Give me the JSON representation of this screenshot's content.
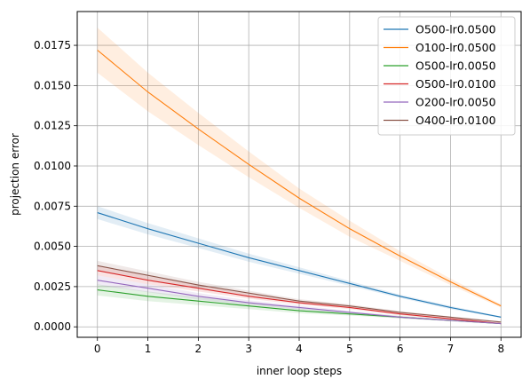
{
  "chart_data": {
    "type": "line",
    "title": "",
    "xlabel": "inner loop steps",
    "ylabel": "projection error",
    "xlim": [
      -0.4,
      8.4
    ],
    "ylim": [
      -0.00065,
      0.0196
    ],
    "xticks": [
      0,
      1,
      2,
      3,
      4,
      5,
      6,
      7,
      8
    ],
    "xtick_labels": [
      "0",
      "1",
      "2",
      "3",
      "4",
      "5",
      "6",
      "7",
      "8"
    ],
    "yticks": [
      0,
      0.0025,
      0.005,
      0.0075,
      0.01,
      0.0125,
      0.015,
      0.0175
    ],
    "ytick_labels": [
      "0.0000",
      "0.0025",
      "0.0050",
      "0.0075",
      "0.0100",
      "0.0125",
      "0.0150",
      "0.0175"
    ],
    "grid": true,
    "legend_position": "top-right",
    "x": [
      0,
      1,
      2,
      3,
      4,
      5,
      6,
      7,
      8
    ],
    "series": [
      {
        "name": "O500-lr0.0500",
        "color": "#1f77b4",
        "values": [
          0.0071,
          0.0061,
          0.0052,
          0.0043,
          0.0035,
          0.0027,
          0.0019,
          0.0012,
          0.0006
        ],
        "band": [
          0.0004,
          0.00035,
          0.0003,
          0.00025,
          0.0002,
          0.00015,
          0.0001,
          0.0001,
          5e-05
        ]
      },
      {
        "name": "O100-lr0.0500",
        "color": "#ff7f0e",
        "values": [
          0.0172,
          0.0146,
          0.0123,
          0.0101,
          0.008,
          0.0061,
          0.0044,
          0.0028,
          0.0013
        ],
        "band": [
          0.0014,
          0.0012,
          0.001,
          0.0008,
          0.0006,
          0.0005,
          0.0003,
          0.0002,
          0.0001
        ]
      },
      {
        "name": "O500-lr0.0050",
        "color": "#2ca02c",
        "values": [
          0.0023,
          0.0019,
          0.0016,
          0.0013,
          0.001,
          0.0008,
          0.0006,
          0.0004,
          0.0002
        ],
        "band": [
          0.00035,
          0.0003,
          0.00025,
          0.0002,
          0.00015,
          0.0001,
          8e-05,
          5e-05,
          3e-05
        ]
      },
      {
        "name": "O500-lr0.0100",
        "color": "#d62728",
        "values": [
          0.0035,
          0.0029,
          0.0024,
          0.0019,
          0.0015,
          0.0012,
          0.0008,
          0.0005,
          0.0002
        ],
        "band": [
          0.0003,
          0.00025,
          0.0002,
          0.00015,
          0.00012,
          0.0001,
          8e-05,
          5e-05,
          3e-05
        ]
      },
      {
        "name": "O200-lr0.0050",
        "color": "#9467bd",
        "values": [
          0.0029,
          0.0024,
          0.0019,
          0.0015,
          0.0012,
          0.0009,
          0.0006,
          0.0004,
          0.0002
        ],
        "band": [
          0.0003,
          0.00025,
          0.0002,
          0.00015,
          0.00012,
          0.0001,
          8e-05,
          5e-05,
          3e-05
        ]
      },
      {
        "name": "O400-lr0.0100",
        "color": "#8c564b",
        "values": [
          0.0038,
          0.0032,
          0.0026,
          0.0021,
          0.0016,
          0.0013,
          0.0009,
          0.0006,
          0.0003
        ],
        "band": [
          0.0003,
          0.00025,
          0.0002,
          0.00015,
          0.00012,
          0.0001,
          8e-05,
          5e-05,
          3e-05
        ]
      }
    ]
  }
}
